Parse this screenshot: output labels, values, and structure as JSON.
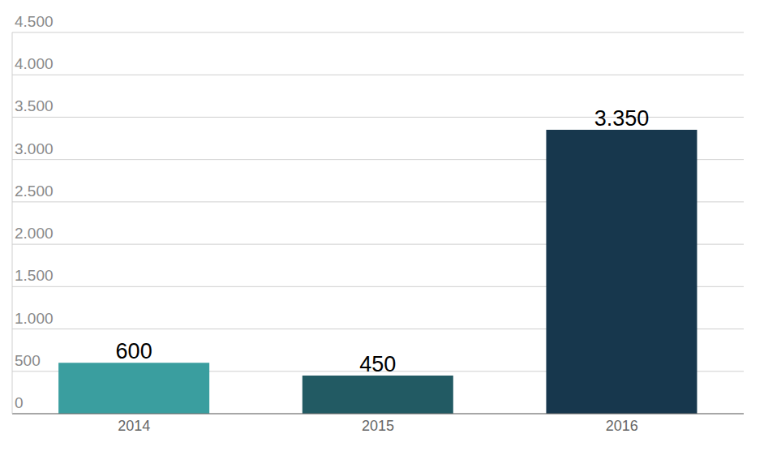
{
  "chart_data": {
    "type": "bar",
    "categories": [
      "2014",
      "2015",
      "2016"
    ],
    "values": [
      600,
      450,
      3350
    ],
    "value_labels": [
      "600",
      "450",
      "3.350"
    ],
    "colors": [
      "#3a9e9f",
      "#225a63",
      "#17374d"
    ],
    "ylim": [
      0,
      4500
    ],
    "yticks": [
      0,
      500,
      {
        "value": 1000,
        "label": "1.000"
      },
      {
        "value": 1500,
        "label": "1.500"
      },
      {
        "value": 2000,
        "label": "2.000"
      },
      {
        "value": 2500,
        "label": "2.500"
      },
      {
        "value": 3000,
        "label": "3.000"
      },
      {
        "value": 3500,
        "label": "3.500"
      },
      {
        "value": 4000,
        "label": "4.000"
      },
      {
        "value": 4500,
        "label": "4.500"
      }
    ],
    "grid": true,
    "data_labels": true
  }
}
